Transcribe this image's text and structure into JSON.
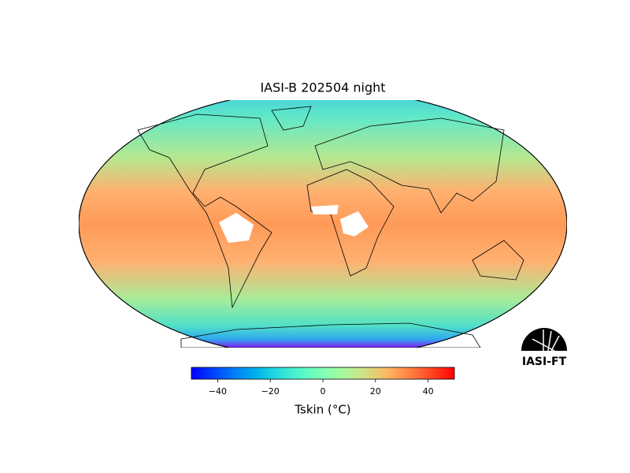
{
  "title": "IASI-B 202504 night",
  "colorbar": {
    "label": "Tskin (°C)",
    "colormap": "rainbow",
    "lim": [
      -50,
      50
    ],
    "ticks": [
      {
        "value": -40,
        "label": "−40"
      },
      {
        "value": -20,
        "label": "−20"
      },
      0,
      20,
      40
    ]
  },
  "logo": "IASI-FT"
}
